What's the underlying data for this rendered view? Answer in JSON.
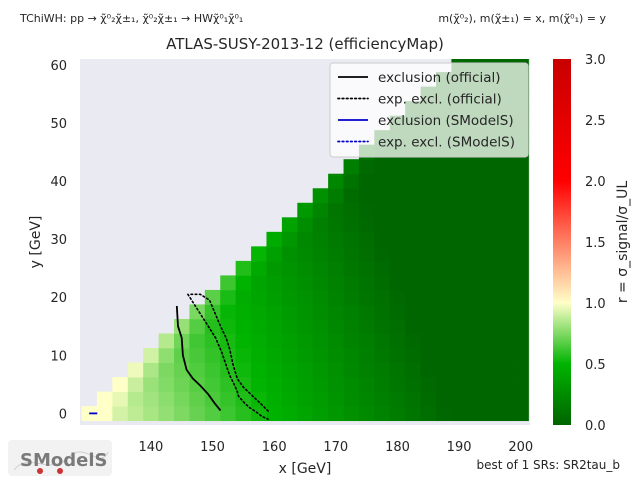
{
  "chart_data": {
    "type": "heatmap",
    "title": "ATLAS-SUSY-2013-12 (efficiencyMap)",
    "process_label": "TChiWH: pp → χ̃⁰₂χ̃±₁, χ̃⁰₂χ̃±₁ → HWχ̃⁰₁χ̃⁰₁",
    "mass_label": "m(χ̃⁰₂), m(χ̃±₁) = x, m(χ̃⁰₁) = y",
    "xlabel": "x [GeV]",
    "ylabel": "y [GeV]",
    "colorbar_label": "r = σ_signal/σ_UL",
    "footnote": "best of 1 SRs: SR2tau_b",
    "logo_text": "SModelS",
    "xlim": [
      128.5,
      201.5
    ],
    "ylim": [
      -2,
      61
    ],
    "zlim": [
      0,
      3
    ],
    "xticks": [
      130,
      140,
      150,
      160,
      170,
      180,
      190,
      200
    ],
    "yticks": [
      0,
      10,
      20,
      30,
      40,
      50,
      60
    ],
    "cbar_ticks": [
      "0.0",
      "0.5",
      "1.0",
      "1.5",
      "2.0",
      "2.5",
      "3.0"
    ],
    "colormap": [
      "#006400",
      "#00b400",
      "#ffffc8",
      "#ff0000",
      "#c80000"
    ],
    "colormap_stops": [
      0,
      0.5,
      1.0,
      2.0,
      3.0
    ],
    "axes_background": "#eaeaf2",
    "legend_position": "top-right",
    "grid": false,
    "legend": [
      {
        "label": "exclusion (official)",
        "color": "#000000",
        "dash": "solid"
      },
      {
        "label": "exp. excl. (official)",
        "color": "#000000",
        "dash": "dotted"
      },
      {
        "label": "exclusion (SModelS)",
        "color": "#0000cc",
        "dash": "solid"
      },
      {
        "label": "exp. excl. (SModelS)",
        "color": "#0000cc",
        "dash": "dotted"
      }
    ],
    "heatmap_model": {
      "description": "grid of r values; cell exists for y < x - 130",
      "x_start": 130,
      "x_end": 200,
      "x_step": 2.5,
      "y_start": 0,
      "y_end": 60,
      "y_step": 2.5
    },
    "series": [
      {
        "name": "exclusion (official)",
        "color": "#000000",
        "dash": "solid",
        "x": [
          144.2,
          144.4,
          145.0,
          145.2,
          145.8,
          146.8,
          148.0,
          149.3,
          150.3,
          151.3
        ],
        "y": [
          18.5,
          15.0,
          13.0,
          10.0,
          7.5,
          6.0,
          4.8,
          3.3,
          1.8,
          0.5
        ]
      },
      {
        "name": "exp. excl. (official)",
        "color": "#000000",
        "dash": "dotted",
        "x": [
          146.0,
          147.5,
          149.0,
          150.5,
          151.5,
          152.3,
          152.8,
          153.5,
          154.0,
          154.2,
          155.0,
          156.0,
          157.0,
          158.0,
          159.0
        ],
        "y": [
          20.5,
          18.0,
          15.5,
          13.0,
          10.5,
          8.0,
          6.5,
          5.0,
          3.8,
          3.0,
          2.0,
          1.0,
          0.3,
          -0.5,
          -1.0
        ]
      },
      {
        "name": "exp. excl. (official) upper",
        "color": "#000000",
        "dash": "dotted",
        "x": [
          146.5,
          148.0,
          149.5,
          150.5,
          151.3,
          152.2,
          152.8,
          153.3,
          154.0,
          155.0,
          156.0,
          157.0,
          158.0,
          159.2
        ],
        "y": [
          20.5,
          20.5,
          19.5,
          17.0,
          15.0,
          13.0,
          11.0,
          8.5,
          6.0,
          4.5,
          3.5,
          2.5,
          1.5,
          0.2
        ]
      },
      {
        "name": "exclusion (SModelS)",
        "color": "#0000cc",
        "dash": "solid",
        "x": [
          130.0,
          131.3
        ],
        "y": [
          0.0,
          0.0
        ]
      }
    ]
  }
}
